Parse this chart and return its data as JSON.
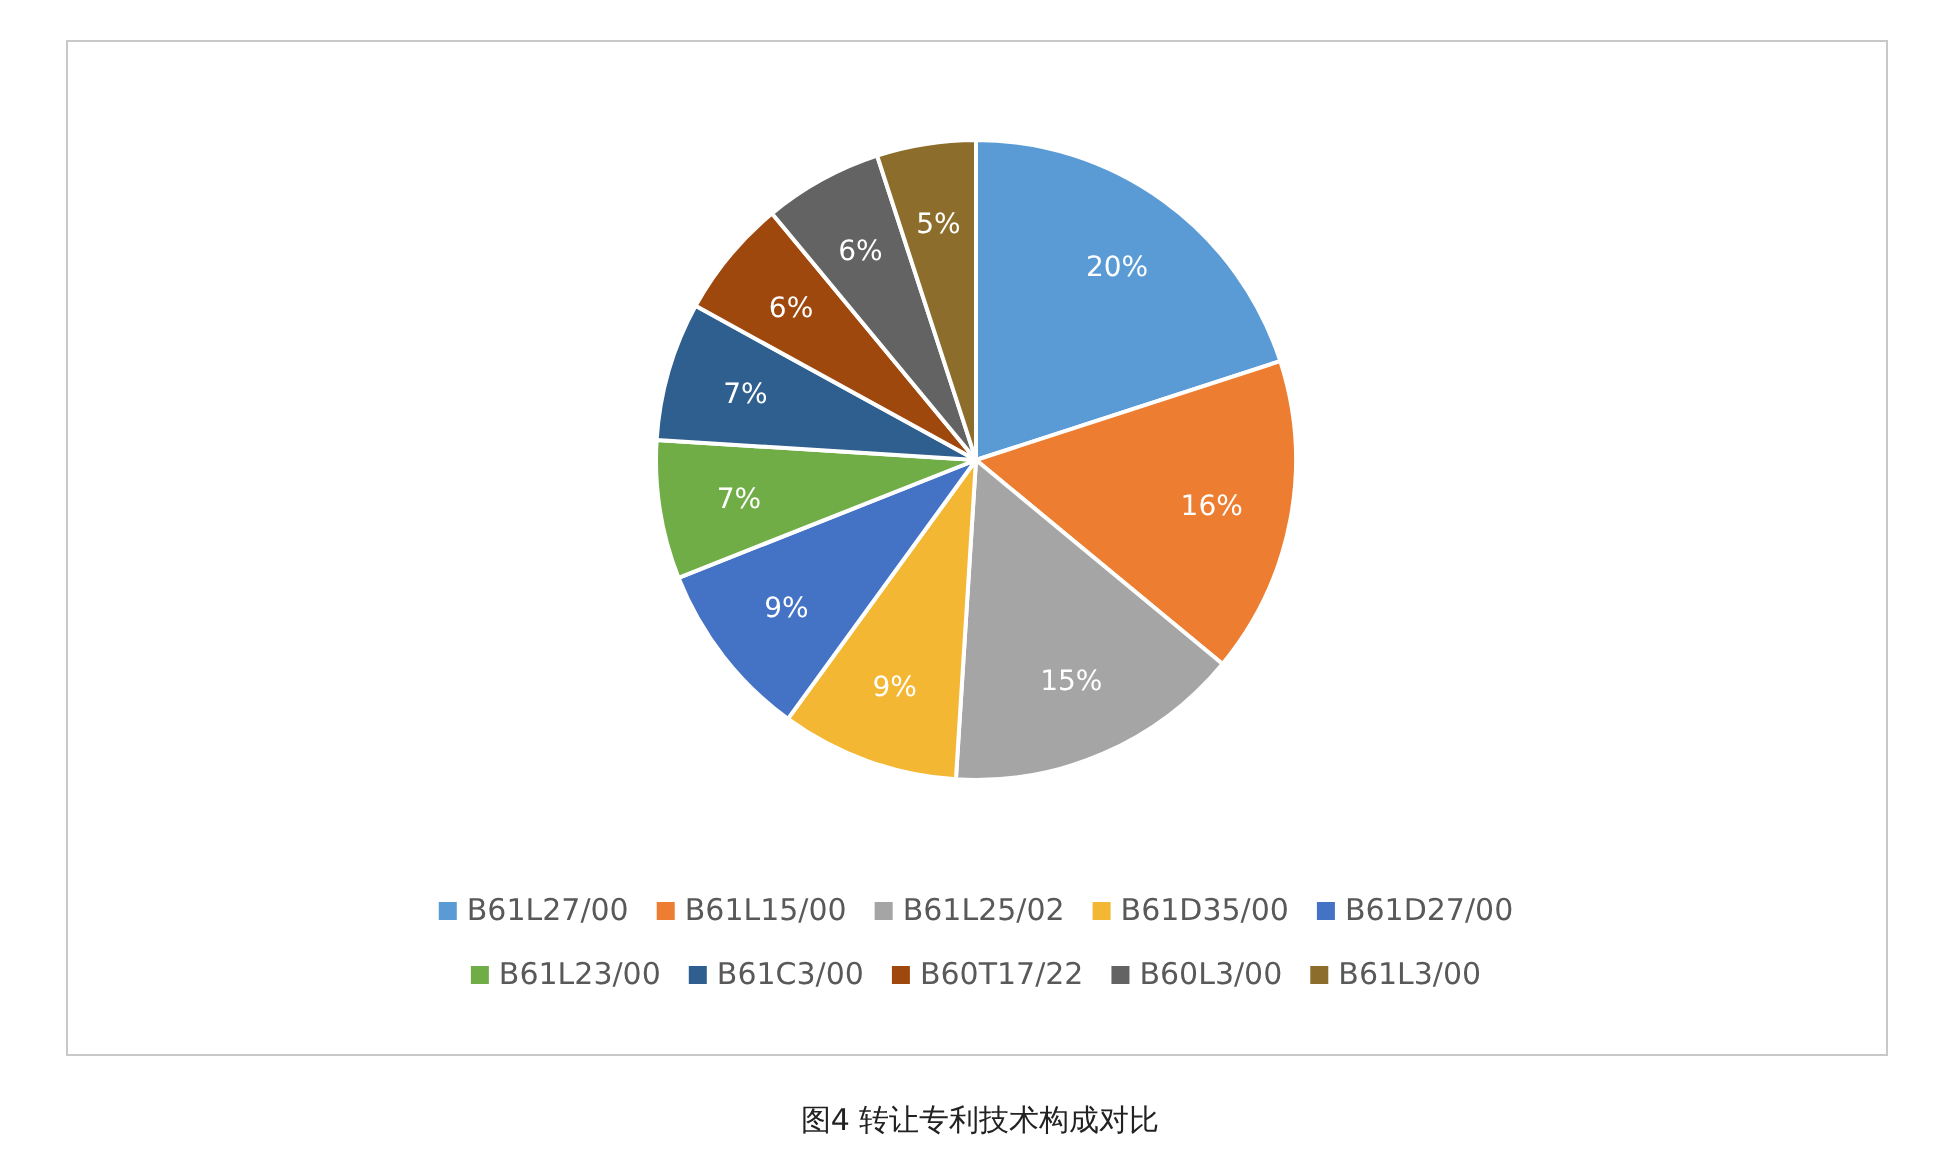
{
  "chart_data": {
    "type": "pie",
    "title": "图4 转让专利技术构成对比",
    "categories": [
      "B61L27/00",
      "B61L15/00",
      "B61L25/02",
      "B61D35/00",
      "B61D27/00",
      "B61L23/00",
      "B61C3/00",
      "B60T17/22",
      "B60L3/00",
      "B61L3/00"
    ],
    "values": [
      20,
      16,
      15,
      9,
      9,
      7,
      7,
      6,
      6,
      5
    ],
    "colors": [
      "#5b9bd5",
      "#ed7d31",
      "#a5a5a5",
      "#f4b733",
      "#4472c4",
      "#70ad47",
      "#2f5f8f",
      "#9e480e",
      "#636363",
      "#8c6d2c"
    ],
    "value_labels": [
      "20%",
      "16%",
      "15%",
      "9%",
      "9%",
      "7%",
      "7%",
      "6%",
      "6%",
      "5%"
    ],
    "legend": "bottom"
  }
}
